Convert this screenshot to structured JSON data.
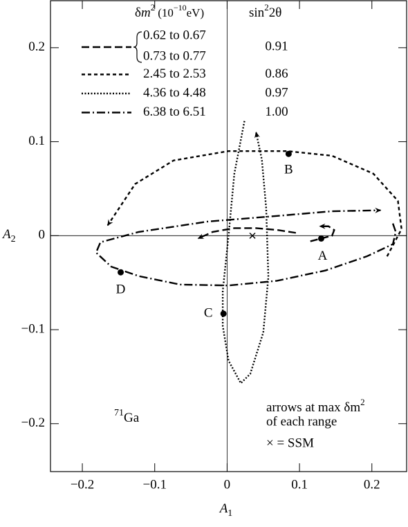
{
  "chart_data": {
    "type": "parametric-line",
    "x_label": {
      "letter": "A",
      "sub": "1"
    },
    "y_label": {
      "letter": "A",
      "sub": "2"
    },
    "xlim": [
      -0.244,
      0.248
    ],
    "ylim": [
      -0.251,
      0.25
    ],
    "xticks": [
      {
        "value": -0.2,
        "label": "−0.2"
      },
      {
        "value": -0.1,
        "label": "−0.1"
      },
      0,
      0.1,
      0.2
    ],
    "yticks": [
      {
        "value": -0.2,
        "label": "−0.2"
      },
      {
        "value": -0.1,
        "label": "−0.1"
      },
      0,
      0.1,
      0.2
    ],
    "legend_title": {
      "symbol": "δ",
      "m": "m",
      "m_power": "2",
      "unit_open": "(10",
      "unit_power": "−10",
      "unit_close": "eV)",
      "mixing": "sin",
      "mixing_power": "2",
      "mixing_rest": "2θ"
    },
    "series": [
      {
        "name": "0.62 to 0.67",
        "name2": "0.73 to 0.77",
        "mixing": 0.91,
        "dash": [
          11,
          5
        ],
        "color": "#000",
        "x": [
          0.095,
          0.07,
          0.04,
          0.01,
          -0.02,
          -0.04,
          null,
          0.115,
          0.13,
          0.145,
          0.148,
          0.14,
          0.128
        ],
        "y": [
          0.003,
          0.006,
          0.008,
          0.008,
          0.004,
          -0.003,
          null,
          -0.006,
          -0.003,
          0.0,
          0.006,
          0.01,
          0.01
        ]
      },
      {
        "name": "2.45 to 2.53",
        "mixing": 0.86,
        "dash": [
          5,
          4
        ],
        "color": "#000",
        "x": [
          0.221,
          0.241,
          0.236,
          0.202,
          0.145,
          0.083,
          0.002,
          -0.074,
          -0.127,
          -0.165
        ],
        "y": [
          -0.022,
          0.007,
          0.037,
          0.066,
          0.085,
          0.09,
          0.09,
          0.08,
          0.055,
          0.011
        ]
      },
      {
        "name": "4.36 to 4.48",
        "mixing": 0.97,
        "dash": [
          2,
          2.5
        ],
        "color": "#000",
        "x": [
          0.024,
          0.01,
          0.002,
          -0.006,
          -0.006,
          0.002,
          0.019,
          0.032,
          0.05,
          0.057,
          0.054,
          0.048,
          0.04
        ],
        "y": [
          0.122,
          0.066,
          0.0,
          -0.059,
          -0.096,
          -0.133,
          -0.157,
          -0.147,
          -0.103,
          -0.044,
          0.029,
          0.081,
          0.11
        ]
      },
      {
        "name": "6.38 to 6.51",
        "mixing": {
          "value": 1,
          "label": "1.00"
        },
        "dash": [
          12,
          4,
          2,
          4
        ],
        "color": "#000",
        "x": [
          0.229,
          0.233,
          0.229,
          0.193,
          0.136,
          0.069,
          0.002,
          -0.065,
          -0.122,
          -0.16,
          -0.181,
          -0.175,
          -0.122,
          -0.027,
          0.069,
          0.145,
          0.212
        ],
        "y": [
          0.013,
          0.004,
          -0.009,
          -0.022,
          -0.037,
          -0.048,
          -0.053,
          -0.052,
          -0.043,
          -0.033,
          -0.018,
          -0.007,
          0.004,
          0.015,
          0.021,
          0.026,
          0.027
        ]
      }
    ],
    "points": [
      {
        "label": "A",
        "x": 0.13,
        "y": -0.003
      },
      {
        "label": "B",
        "x": 0.085,
        "y": 0.087
      },
      {
        "label": "C",
        "x": -0.005,
        "y": -0.083
      },
      {
        "label": "D",
        "x": -0.147,
        "y": -0.039
      }
    ],
    "ssm": {
      "x": 0.035,
      "y": 0.0
    },
    "isotope": {
      "mass": "71",
      "element": "Ga"
    },
    "note": {
      "line1": "arrows at max δm",
      "line1_power": "2",
      "line2": "of each range",
      "line3": "× = SSM"
    }
  }
}
